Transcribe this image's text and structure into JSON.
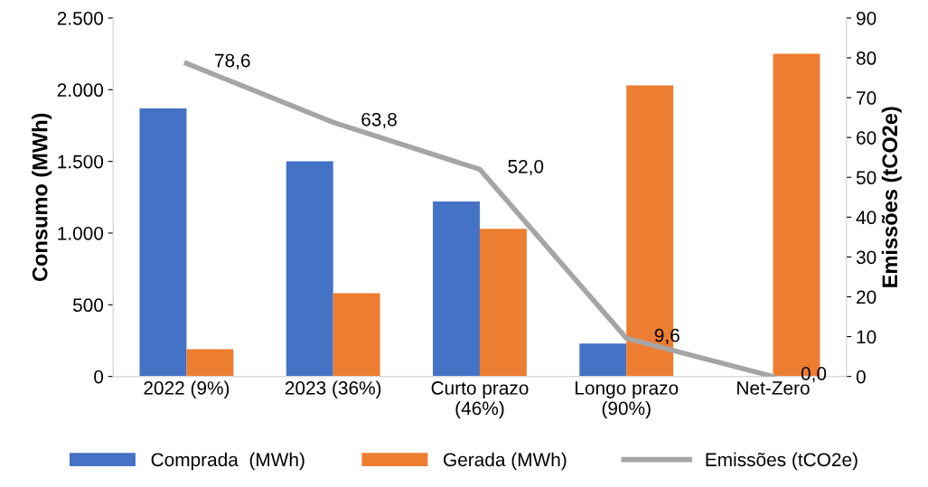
{
  "chart_data": {
    "type": "bar",
    "ylabel": "Consumo (MWh)",
    "y2label": "Emissões (tCO2e)",
    "categories": [
      "2022 (9%)",
      "2023 (36%)",
      "Curto prazo\n(46%)",
      "Longo prazo\n(90%)",
      "Net-Zero"
    ],
    "series": [
      {
        "name": "Comprada  (MWh)",
        "color": "#4472c4",
        "values": [
          1870,
          1500,
          1220,
          230,
          null
        ]
      },
      {
        "name": "Gerada (MWh)",
        "color": "#ed7d31",
        "values": [
          190,
          580,
          1030,
          2030,
          2250
        ]
      },
      {
        "name": "Emissões (tCO2e)",
        "type": "line",
        "axis": "y2",
        "color": "#a5a5a5",
        "values": [
          78.6,
          63.8,
          52.0,
          9.6,
          0.0
        ],
        "value_labels": [
          "78,6",
          "63,8",
          "52,0",
          "9,6",
          "0,0"
        ]
      }
    ],
    "ylim": [
      0,
      2500
    ],
    "yticks": [
      0,
      500,
      {
        "value": 1000,
        "label": "1.000"
      },
      {
        "value": 1500,
        "label": "1.500"
      },
      {
        "value": 2000,
        "label": "2.000"
      },
      {
        "value": 2500,
        "label": "2.500"
      }
    ],
    "y2lim": [
      0,
      90
    ],
    "y2ticks": [
      0,
      10,
      20,
      30,
      40,
      50,
      60,
      70,
      80,
      90
    ],
    "grid": false,
    "legend": "bottom",
    "marker": "none",
    "line_style": "solid"
  }
}
